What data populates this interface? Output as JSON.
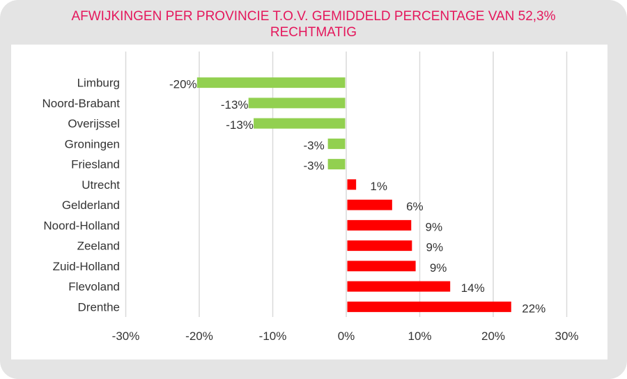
{
  "title_line1": "AFWIJKINGEN PER PROVINCIE T.O.V. GEMIDDELD PERCENTAGE VAN 52,3%",
  "title_line2": "RECHTMATIG",
  "chart_data": {
    "type": "bar",
    "orientation": "horizontal",
    "categories": [
      "Limburg",
      "Noord-Brabant",
      "Overijssel",
      "Groningen",
      "Friesland",
      "Utrecht",
      "Gelderland",
      "Noord-Holland",
      "Zeeland",
      "Zuid-Holland",
      "Flevoland",
      "Drenthe"
    ],
    "values": [
      -20.3,
      -13.3,
      -12.6,
      -2.5,
      -2.5,
      1.2,
      6.1,
      8.7,
      8.8,
      9.3,
      14.0,
      22.3
    ],
    "data_labels": [
      "-20%",
      "-13%",
      "-13%",
      "-3%",
      "-3%",
      "1%",
      "6%",
      "9%",
      "9%",
      "9%",
      "14%",
      "22%"
    ],
    "negative_color": "#92d050",
    "positive_color": "#ff0000",
    "xlim": [
      -30,
      30
    ],
    "xticks": [
      -30,
      -20,
      -10,
      0,
      10,
      20,
      30
    ],
    "xtick_labels": [
      "-30%",
      "-20%",
      "-10%",
      "0%",
      "10%",
      "20%",
      "30%"
    ],
    "grid": "vertical",
    "legend": "none"
  }
}
